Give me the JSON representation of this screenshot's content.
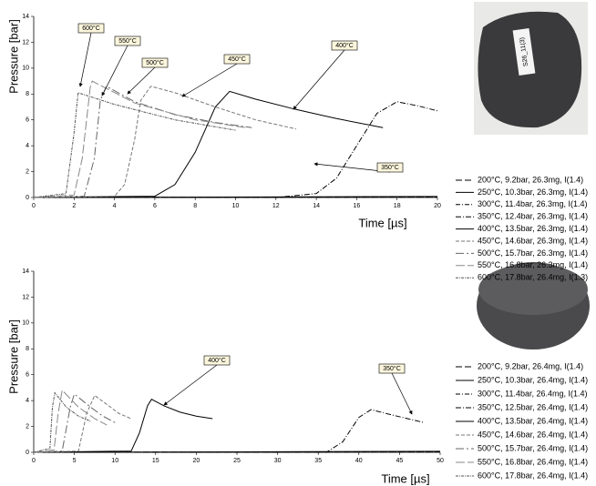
{
  "chart_data": [
    {
      "type": "line",
      "x_label": "Time [µs]",
      "y_label": "Pressure [bar]",
      "xlim": [
        0,
        20
      ],
      "xticks": [
        0,
        2,
        4,
        6,
        8,
        10,
        12,
        14,
        16,
        18,
        20
      ],
      "ylim": [
        0,
        14
      ],
      "yticks": [
        0,
        2,
        4,
        6,
        8,
        10,
        12,
        14
      ],
      "series": [
        {
          "name": "200°C, 9.2bar, 26.3mg, I(1.4)",
          "color": "#000000",
          "dash": "7,3",
          "x": [
            0,
            20
          ],
          "values": [
            0,
            0.05
          ]
        },
        {
          "name": "250°C, 10.3bar, 26.3mg, I(1.4)",
          "color": "#000000",
          "dash": "none",
          "x": [
            0,
            20
          ],
          "values": [
            0,
            0.08
          ]
        },
        {
          "name": "300°C, 11.4bar, 26.3mg, I(1.4)",
          "color": "#000000",
          "dash": "5,2,1,2",
          "x": [
            0,
            20
          ],
          "values": [
            0,
            0.03
          ]
        },
        {
          "name": "350°C, 12.4bar, 26.3mg, I(1.4)",
          "color": "#000000",
          "dash": "6,2,1,2",
          "x": [
            0,
            12,
            14,
            15,
            16,
            17,
            18,
            19,
            20
          ],
          "values": [
            0,
            0,
            0.3,
            1.5,
            4,
            6.5,
            7.4,
            7.1,
            6.7
          ]
        },
        {
          "name": "400°C, 13.5bar, 26.3mg, I(1.4)",
          "color": "#000000",
          "dash": "none",
          "x": [
            0,
            6,
            7,
            8,
            9,
            9.7,
            11,
            13,
            15,
            17.3
          ],
          "values": [
            0,
            0.1,
            1,
            3.5,
            7,
            8.2,
            7.6,
            6.8,
            6.1,
            5.4
          ]
        },
        {
          "name": "450°C, 14.6bar, 26.3mg, I(1.4)",
          "color": "#777777",
          "dash": "4,2",
          "x": [
            0,
            4,
            4.5,
            5,
            5.3,
            5.8,
            7,
            9,
            11,
            13
          ],
          "values": [
            0,
            0.1,
            1,
            4.5,
            7.5,
            8.6,
            8.1,
            7,
            6,
            5.3
          ]
        },
        {
          "name": "500°C, 15.7bar, 26.3mg, I(1.4)",
          "color": "#666666",
          "dash": "9,3,2,3",
          "x": [
            0,
            2.5,
            3,
            3.3,
            3.6,
            5,
            7,
            9,
            10.8
          ],
          "values": [
            0,
            0.1,
            3,
            7.5,
            8.6,
            7.4,
            6.4,
            5.8,
            5.4
          ]
        },
        {
          "name": "550°C, 16.8bar, 26.3mg, I(1.4)",
          "color": "#888888",
          "dash": "10,3",
          "x": [
            0,
            2,
            2.4,
            2.8,
            2.9,
            5,
            8,
            10.5
          ],
          "values": [
            0,
            0.2,
            3,
            8.5,
            9,
            7.3,
            6,
            5.4
          ]
        },
        {
          "name": "600°C, 17.8bar, 26.4mg, I(1.3)",
          "color": "#555555",
          "dash": "3,1,1,1",
          "x": [
            0,
            1.6,
            2,
            2.2,
            4,
            7,
            10
          ],
          "values": [
            0,
            0.3,
            5,
            8.1,
            7.2,
            6,
            5.2
          ]
        }
      ],
      "annotations": [
        "600°C",
        "550°C",
        "500°C",
        "450°C",
        "400°C",
        "350°C"
      ]
    },
    {
      "type": "line",
      "x_label": "Time [µs]",
      "y_label": "Pressure [bar]",
      "xlim": [
        0,
        50
      ],
      "xticks": [
        0,
        5,
        10,
        15,
        20,
        25,
        30,
        35,
        40,
        45,
        50
      ],
      "ylim": [
        0,
        14
      ],
      "yticks": [
        0,
        2,
        4,
        6,
        8,
        10,
        12,
        14
      ],
      "series": [
        {
          "name": "200°C, 9.2bar, 26.4mg, I(1.4)",
          "color": "#000000",
          "dash": "7,3",
          "x": [
            0,
            50
          ],
          "values": [
            0,
            0.05
          ]
        },
        {
          "name": "250°C, 10.3bar, 26.4mg, I(1.4)",
          "color": "#000000",
          "dash": "none",
          "x": [
            0,
            50
          ],
          "values": [
            0,
            0.08
          ]
        },
        {
          "name": "300°C, 11.4bar, 26.4mg, I(1.4)",
          "color": "#000000",
          "dash": "5,2,1,2",
          "x": [
            0,
            50
          ],
          "values": [
            0,
            0.03
          ]
        },
        {
          "name": "350°C, 12.5bar, 26.4mg, I(1.4)",
          "color": "#000000",
          "dash": "6,2,1,2",
          "x": [
            0,
            36,
            38,
            40,
            41.5,
            44,
            46,
            48
          ],
          "values": [
            0,
            0,
            0.8,
            2.7,
            3.3,
            2.9,
            2.6,
            2.3
          ]
        },
        {
          "name": "400°C, 13.5bar, 26.4mg, I(1.4)",
          "color": "#000000",
          "dash": "none",
          "x": [
            0,
            12,
            13,
            14,
            14.5,
            16,
            18,
            20,
            22
          ],
          "values": [
            0,
            0.1,
            1.5,
            3.6,
            4.1,
            3.6,
            3.1,
            2.8,
            2.6
          ]
        },
        {
          "name": "450°C, 14.6bar, 26.4mg, I(1.4)",
          "color": "#777777",
          "dash": "4,2",
          "x": [
            0,
            5.5,
            6.5,
            7.5,
            9,
            10.5,
            12
          ],
          "values": [
            0,
            0.1,
            3,
            4.4,
            3.7,
            3,
            2.6
          ]
        },
        {
          "name": "500°C, 15.7bar, 26.4mg, I(1.4)",
          "color": "#666666",
          "dash": "9,3,2,3",
          "x": [
            0,
            3.5,
            4.5,
            5,
            7,
            8.5,
            10
          ],
          "values": [
            0,
            0.1,
            3.5,
            4.5,
            3.5,
            2.8,
            2.3
          ]
        },
        {
          "name": "550°C, 16.8bar, 26.4mg, I(1.4)",
          "color": "#888888",
          "dash": "10,3",
          "x": [
            0,
            2.5,
            3,
            3.5,
            5.5,
            7.5,
            9
          ],
          "values": [
            0,
            0.2,
            3,
            4.8,
            3.5,
            2.6,
            2.1
          ]
        },
        {
          "name": "600°C, 17.8bar, 26.4mg, I(1.4)",
          "color": "#555555",
          "dash": "3,1,1,1",
          "x": [
            0,
            2,
            2.3,
            2.6,
            4,
            5.5,
            7
          ],
          "values": [
            0,
            0.3,
            3.5,
            4.6,
            3.5,
            2.8,
            2.4
          ]
        }
      ],
      "annotations": [
        "400°C",
        "350°C"
      ]
    }
  ],
  "photo_label": "S26_11(3)"
}
